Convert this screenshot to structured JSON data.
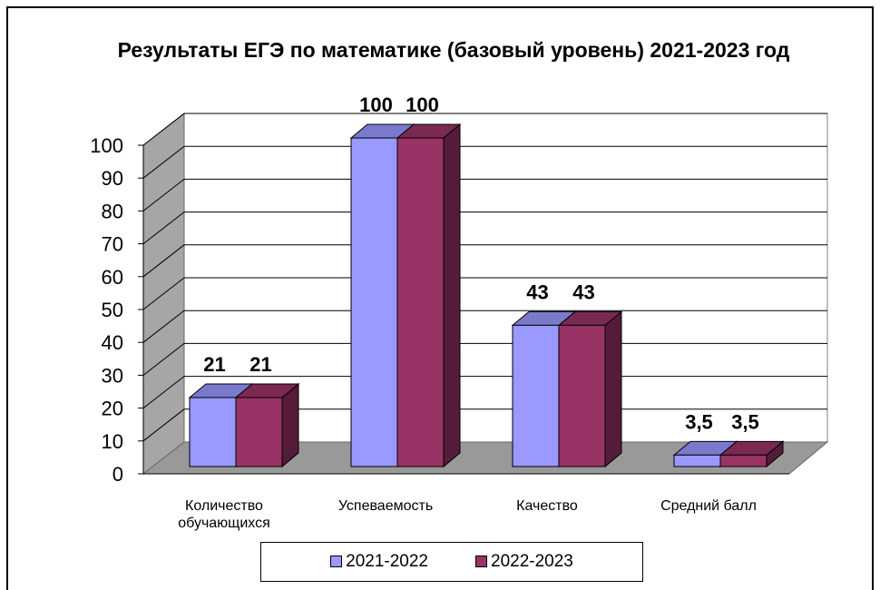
{
  "chart_data": {
    "type": "bar3d",
    "title": "Результаты ЕГЭ по математике (базовый уровень) 2021-2023 год",
    "categories": [
      "Количество обучающихся",
      "Успеваемость",
      "Качество",
      "Средний балл"
    ],
    "series": [
      {
        "name": "2021-2022",
        "color": "#9999ff",
        "values": [
          21,
          100,
          43,
          3.5
        ],
        "value_labels": [
          "21",
          "100",
          "43",
          "3,5"
        ]
      },
      {
        "name": "2022-2023",
        "color": "#993366",
        "values": [
          21,
          100,
          43,
          3.5
        ],
        "value_labels": [
          "21",
          "100",
          "43",
          "3,5"
        ]
      }
    ],
    "ylim": [
      0,
      100
    ],
    "yticks": [
      0,
      10,
      20,
      30,
      40,
      50,
      60,
      70,
      80,
      90,
      100
    ],
    "grid": true
  }
}
